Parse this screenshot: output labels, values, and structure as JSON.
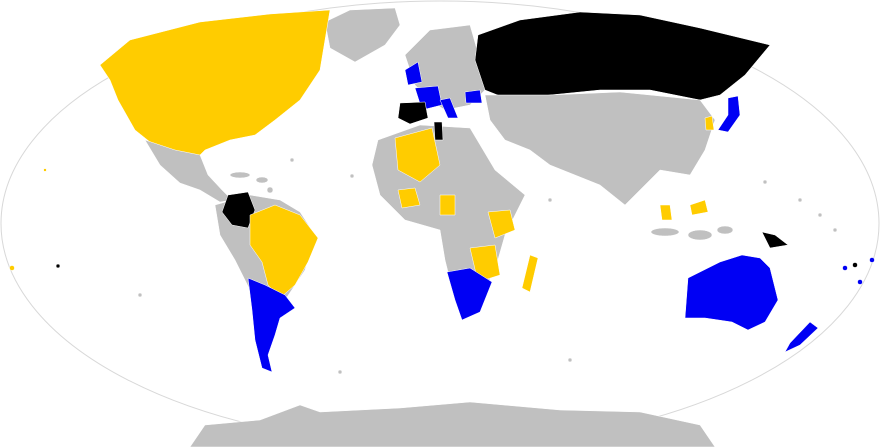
{
  "map": {
    "colors": {
      "yellow": "#ffcc00",
      "blue": "#0000f4",
      "black": "#000000",
      "gray": "#c0c0c0",
      "ocean": "#ffffff",
      "outline": "#d8d8d8"
    }
  }
}
